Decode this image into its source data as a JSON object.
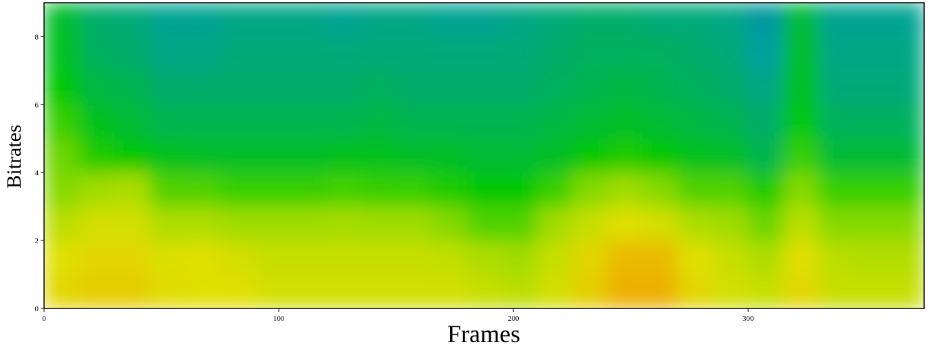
{
  "chart_data": {
    "type": "heatmap",
    "xlabel": "Frames",
    "ylabel": "Bitrates",
    "xlim": [
      0,
      375
    ],
    "ylim": [
      0,
      9
    ],
    "xticks": [
      0,
      100,
      200,
      300
    ],
    "yticks": [
      0,
      2,
      4,
      6,
      8
    ],
    "xbins": [
      0,
      15,
      30,
      45,
      60,
      75,
      90,
      105,
      120,
      135,
      150,
      165,
      180,
      195,
      210,
      225,
      240,
      255,
      270,
      285,
      300,
      315,
      330,
      345,
      360,
      375
    ],
    "ybins": [
      0,
      1,
      2,
      3,
      4,
      5,
      6,
      7,
      8,
      9
    ],
    "zlim": [
      0,
      1
    ],
    "colorscale": [
      [
        0,
        "#000080"
      ],
      [
        0.2,
        "#0050a0"
      ],
      [
        0.38,
        "#00a0a0"
      ],
      [
        0.5,
        "#00c800"
      ],
      [
        0.62,
        "#a0dc00"
      ],
      [
        0.72,
        "#e0e000"
      ],
      [
        0.85,
        "#f0a000"
      ],
      [
        1,
        "#ff4000"
      ]
    ],
    "z": [
      [
        0.74,
        0.76,
        0.76,
        0.73,
        0.72,
        0.72,
        0.7,
        0.7,
        0.7,
        0.7,
        0.7,
        0.7,
        0.68,
        0.66,
        0.7,
        0.76,
        0.82,
        0.82,
        0.74,
        0.7,
        0.68,
        0.74,
        0.68,
        0.68,
        0.68
      ],
      [
        0.72,
        0.74,
        0.74,
        0.71,
        0.72,
        0.7,
        0.68,
        0.68,
        0.68,
        0.68,
        0.68,
        0.67,
        0.64,
        0.62,
        0.68,
        0.74,
        0.8,
        0.8,
        0.72,
        0.68,
        0.64,
        0.72,
        0.66,
        0.65,
        0.65
      ],
      [
        0.66,
        0.7,
        0.7,
        0.64,
        0.64,
        0.62,
        0.62,
        0.62,
        0.63,
        0.62,
        0.62,
        0.6,
        0.56,
        0.56,
        0.62,
        0.68,
        0.72,
        0.7,
        0.64,
        0.62,
        0.58,
        0.66,
        0.6,
        0.6,
        0.6
      ],
      [
        0.6,
        0.62,
        0.64,
        0.56,
        0.56,
        0.54,
        0.54,
        0.54,
        0.55,
        0.54,
        0.54,
        0.52,
        0.5,
        0.5,
        0.54,
        0.6,
        0.62,
        0.6,
        0.56,
        0.56,
        0.52,
        0.6,
        0.54,
        0.54,
        0.54
      ],
      [
        0.58,
        0.52,
        0.5,
        0.48,
        0.47,
        0.47,
        0.47,
        0.47,
        0.48,
        0.48,
        0.47,
        0.47,
        0.46,
        0.46,
        0.47,
        0.5,
        0.52,
        0.5,
        0.48,
        0.47,
        0.44,
        0.54,
        0.46,
        0.46,
        0.46
      ],
      [
        0.54,
        0.48,
        0.46,
        0.44,
        0.44,
        0.44,
        0.44,
        0.44,
        0.44,
        0.45,
        0.44,
        0.44,
        0.44,
        0.44,
        0.45,
        0.46,
        0.47,
        0.46,
        0.45,
        0.44,
        0.42,
        0.5,
        0.43,
        0.43,
        0.43
      ],
      [
        0.5,
        0.45,
        0.44,
        0.42,
        0.42,
        0.42,
        0.42,
        0.42,
        0.42,
        0.43,
        0.42,
        0.42,
        0.42,
        0.42,
        0.43,
        0.44,
        0.45,
        0.44,
        0.43,
        0.42,
        0.4,
        0.48,
        0.41,
        0.41,
        0.41
      ],
      [
        0.48,
        0.43,
        0.42,
        0.4,
        0.4,
        0.41,
        0.41,
        0.41,
        0.41,
        0.41,
        0.41,
        0.41,
        0.41,
        0.41,
        0.42,
        0.43,
        0.43,
        0.43,
        0.42,
        0.41,
        0.38,
        0.47,
        0.4,
        0.4,
        0.4
      ],
      [
        0.47,
        0.42,
        0.41,
        0.39,
        0.39,
        0.4,
        0.4,
        0.4,
        0.39,
        0.4,
        0.4,
        0.39,
        0.39,
        0.4,
        0.41,
        0.42,
        0.42,
        0.41,
        0.41,
        0.4,
        0.36,
        0.46,
        0.39,
        0.39,
        0.39
      ]
    ]
  }
}
